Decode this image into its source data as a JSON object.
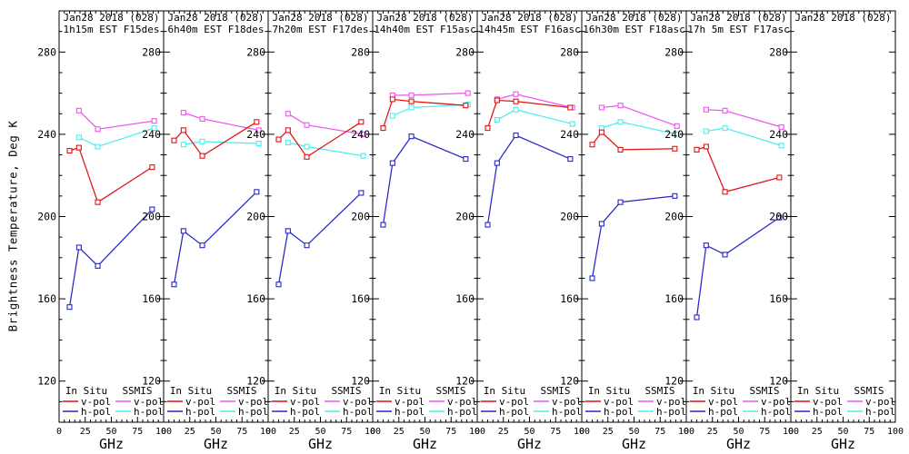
{
  "figure": {
    "y_axis_title": "Brightness Temperature, Deg K",
    "x_axis_title": "GHz",
    "y_ticks": [
      120,
      160,
      200,
      240,
      280
    ],
    "x_ticks": [
      0,
      25,
      50,
      75,
      100
    ],
    "legend": {
      "col1_header": "In Situ",
      "col2_header": "SSMIS",
      "vpol_label": "v-pol",
      "hpol_label": "h-pol"
    },
    "colors": {
      "insitu_v": "#e11212",
      "insitu_h": "#2626c9",
      "ssmis_v": "#ef56ee",
      "ssmis_h": "#4deded",
      "axis": "#000000",
      "background": "#ffffff"
    }
  },
  "chart_data": {
    "type": "line",
    "xlabel": "GHz",
    "ylabel": "Brightness Temperature, Deg K",
    "xlim": [
      0,
      100
    ],
    "ylim": [
      100,
      300
    ],
    "x_ticks": [
      0,
      25,
      50,
      75,
      100
    ],
    "y_ticks": [
      120,
      160,
      200,
      240,
      280
    ],
    "x_minor_step": 5,
    "y_minor_step": 10,
    "grid": false,
    "legend_position": "bottom-inside-each-panel",
    "x_insitu_ghz": [
      10,
      19,
      37,
      89
    ],
    "x_ssmis_ghz": [
      19,
      37,
      91
    ],
    "series_keys": [
      "ssmis_h",
      "ssmis_v",
      "insitu_h",
      "insitu_v"
    ],
    "panels": [
      {
        "title_line1": "Jan28 2018 (028)",
        "title_line2": "1h15m EST F15des",
        "series": {
          "insitu_v": [
            232,
            233.5,
            207,
            224
          ],
          "insitu_h": [
            156,
            185,
            176,
            203.5
          ],
          "ssmis_v": [
            251.5,
            242.5,
            246.5
          ],
          "ssmis_h": [
            238.5,
            234,
            243
          ]
        }
      },
      {
        "title_line1": "Jan28 2018 (028)",
        "title_line2": "6h40m EST F18des",
        "series": {
          "insitu_v": [
            237,
            242,
            229.5,
            246
          ],
          "insitu_h": [
            167,
            193,
            186,
            212
          ],
          "ssmis_v": [
            250.5,
            247.5,
            242
          ],
          "ssmis_h": [
            235,
            236.5,
            235.5
          ]
        }
      },
      {
        "title_line1": "Jan28 2018 (028)",
        "title_line2": "7h20m EST F17des",
        "series": {
          "insitu_v": [
            237.5,
            242,
            229,
            246
          ],
          "insitu_h": [
            167,
            193,
            186,
            211.5
          ],
          "ssmis_v": [
            250,
            244.5,
            240
          ],
          "ssmis_h": [
            236,
            234,
            229.5
          ]
        }
      },
      {
        "title_line1": "Jan28 2018 (028)",
        "title_line2": "14h40m EST F15asc",
        "series": {
          "insitu_v": [
            243,
            257,
            256,
            254
          ],
          "insitu_h": [
            196,
            226,
            239,
            228
          ],
          "ssmis_v": [
            259,
            259,
            260
          ],
          "ssmis_h": [
            249,
            253,
            254.5
          ]
        }
      },
      {
        "title_line1": "Jan28 2018 (028)",
        "title_line2": "14h45m EST F16asc",
        "series": {
          "insitu_v": [
            243,
            256.5,
            256,
            253
          ],
          "insitu_h": [
            196,
            226,
            239.5,
            228
          ],
          "ssmis_v": [
            257,
            259.5,
            253
          ],
          "ssmis_h": [
            247,
            252,
            245
          ]
        }
      },
      {
        "title_line1": "Jan28 2018 (028)",
        "title_line2": "16h30m EST F18asc",
        "series": {
          "insitu_v": [
            235,
            241,
            232.5,
            233
          ],
          "insitu_h": [
            170,
            196.5,
            207,
            210
          ],
          "ssmis_v": [
            253,
            254,
            244
          ],
          "ssmis_h": [
            243,
            246,
            240
          ]
        }
      },
      {
        "title_line1": "Jan28 2018 (028)",
        "title_line2": "17h 5m EST F17asc",
        "series": {
          "insitu_v": [
            232.5,
            234,
            212,
            219
          ],
          "insitu_h": [
            151,
            186,
            181.5,
            199.5
          ],
          "ssmis_v": [
            252,
            251.5,
            243.5
          ],
          "ssmis_h": [
            241.5,
            243,
            234.5
          ]
        }
      },
      {
        "title_line1": "Jan28 2018 (028)",
        "title_line2": "",
        "series": null
      }
    ]
  }
}
